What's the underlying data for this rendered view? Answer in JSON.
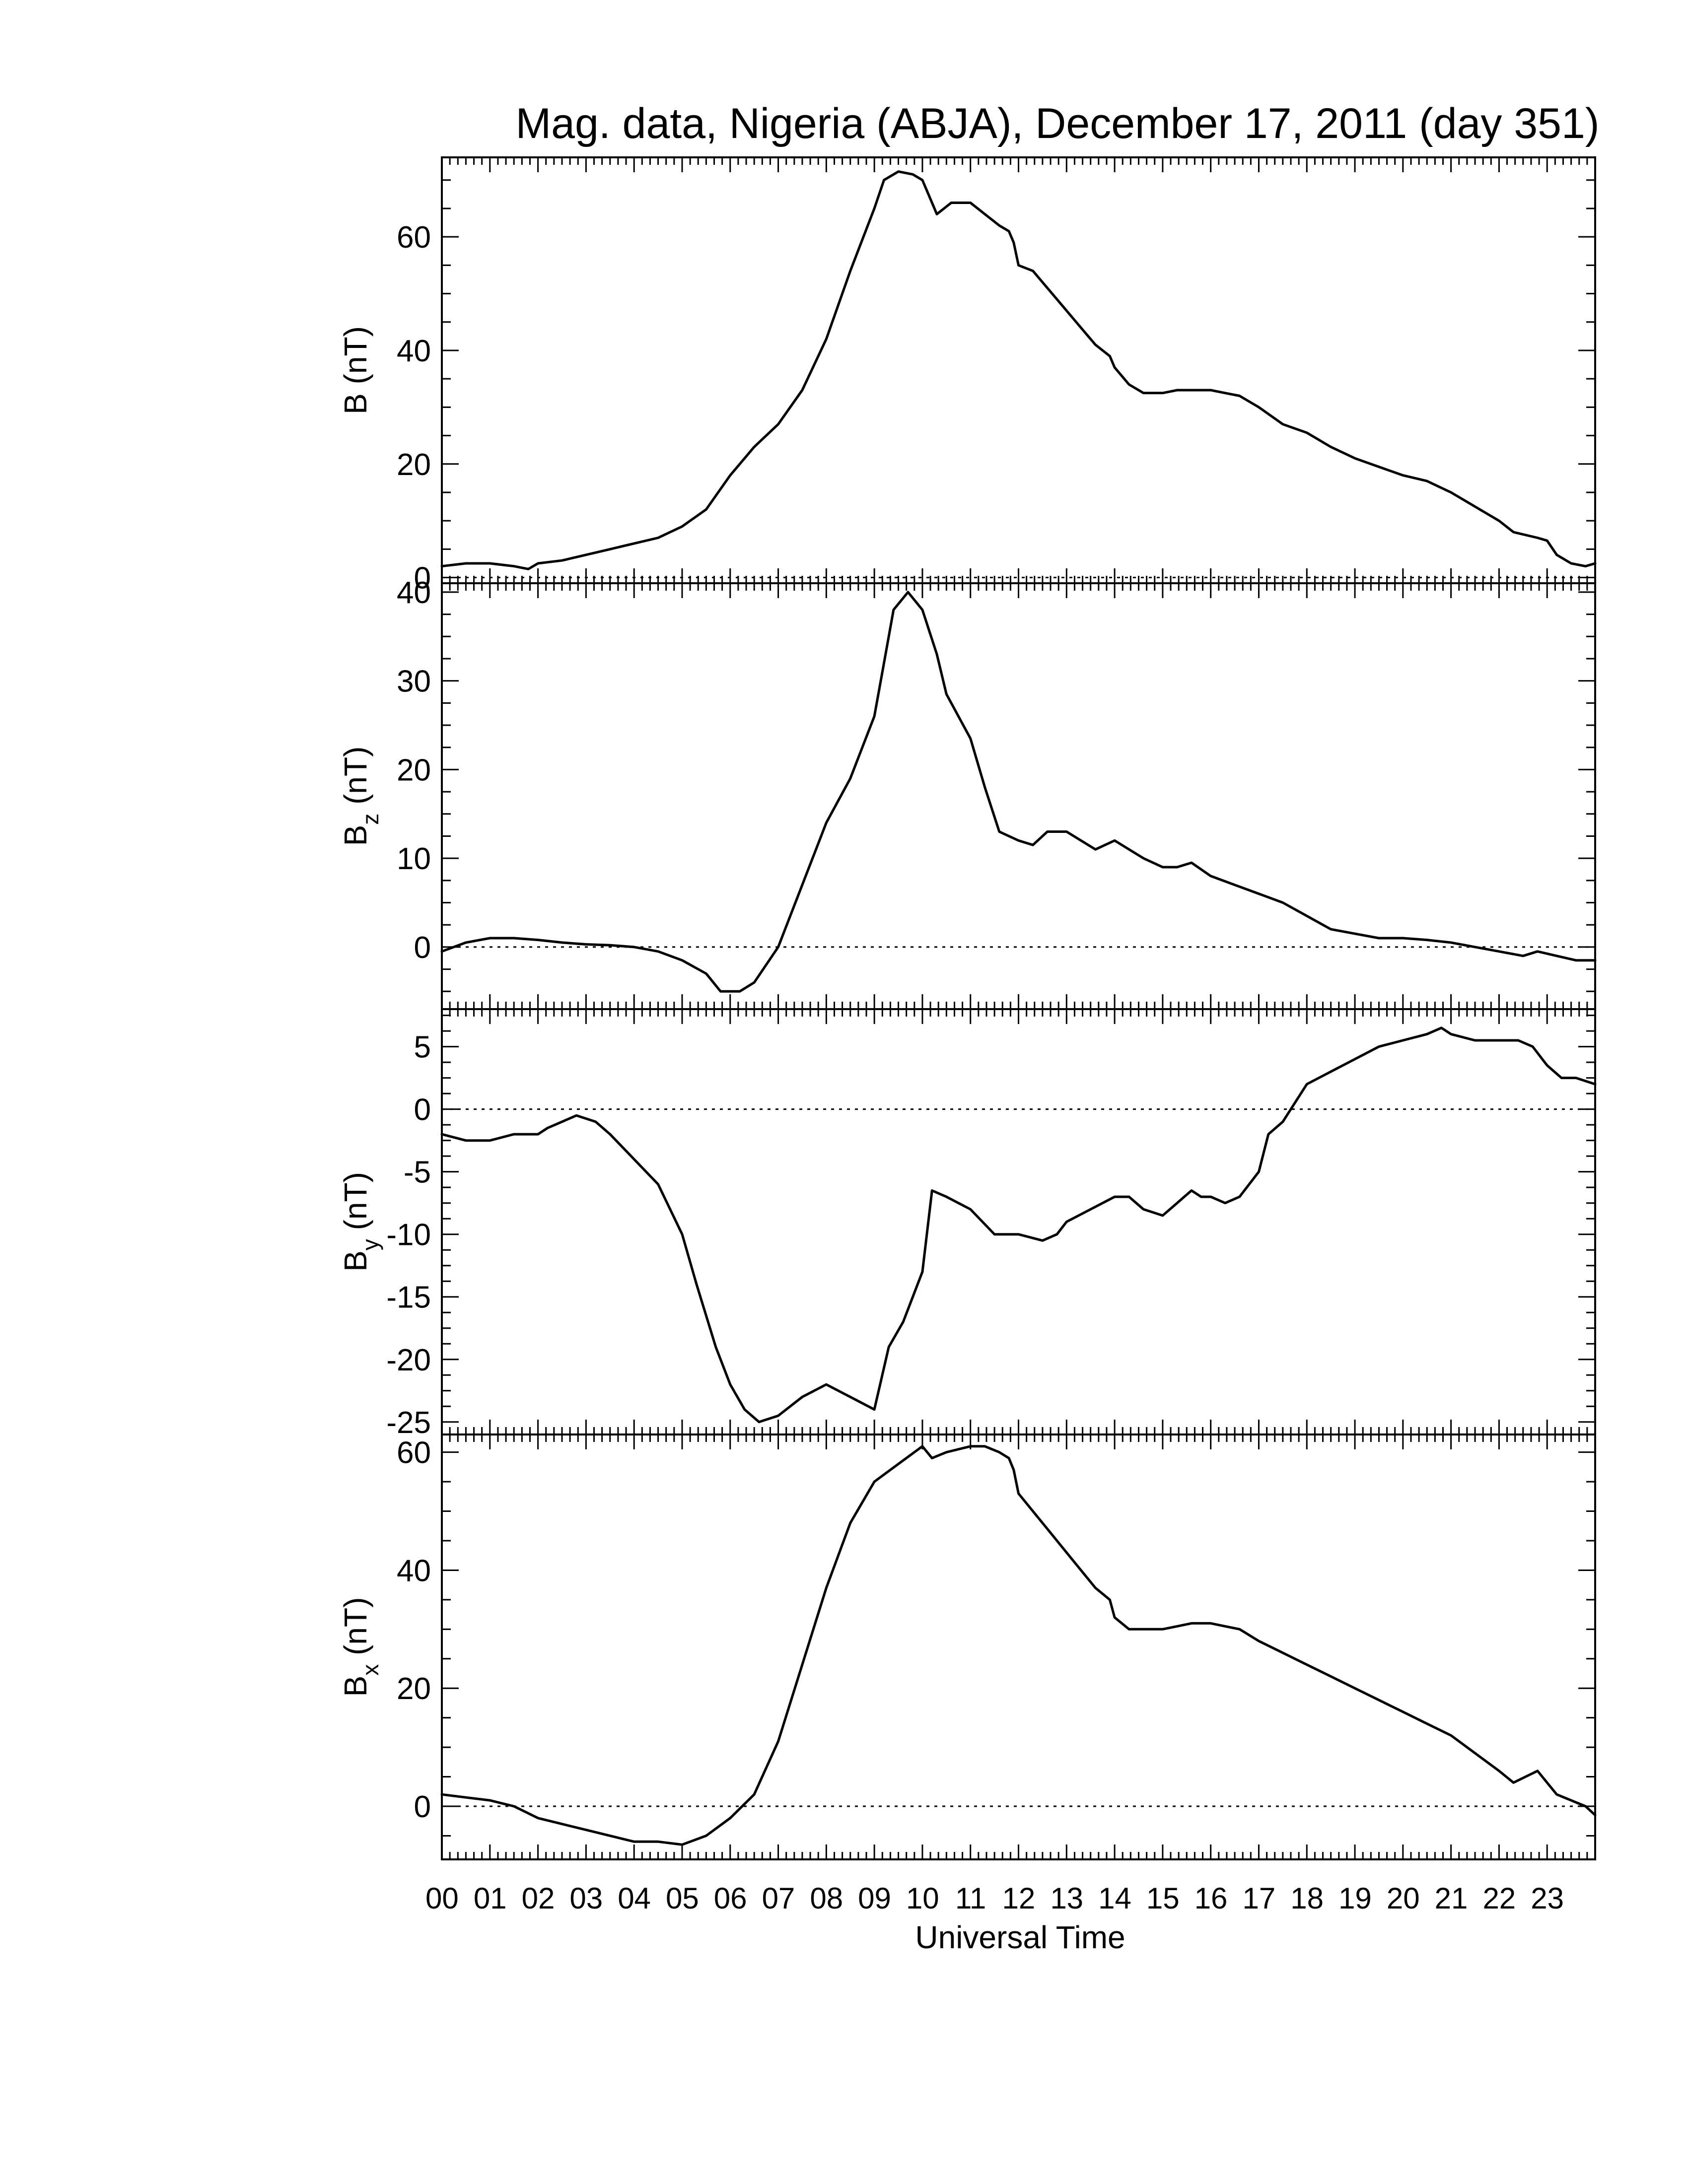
{
  "chart_data": {
    "type": "line",
    "title": "Mag. data, Nigeria (ABJA), December 17, 2011 (day 351)",
    "xlabel": "Universal Time",
    "x_ticks": [
      "00",
      "01",
      "02",
      "03",
      "04",
      "05",
      "06",
      "07",
      "08",
      "09",
      "10",
      "11",
      "12",
      "13",
      "14",
      "15",
      "16",
      "17",
      "18",
      "19",
      "20",
      "21",
      "22",
      "23"
    ],
    "xlim": [
      0,
      24
    ],
    "grid": false,
    "panels": [
      {
        "name": "B",
        "ylabel": "B (nT)",
        "ylabel_base": "B",
        "ylabel_sub": "",
        "ylabel_unit": " (nT)",
        "ylim": [
          -1,
          74
        ],
        "yticks": [
          0,
          20,
          40,
          60
        ],
        "zero_line": true,
        "x": [
          0,
          0.5,
          1,
          1.5,
          1.8,
          2.0,
          2.5,
          3,
          3.5,
          4,
          4.5,
          5,
          5.5,
          6,
          6.5,
          7,
          7.5,
          8,
          8.5,
          9,
          9.2,
          9.5,
          9.8,
          10,
          10.1,
          10.3,
          10.6,
          11,
          11.3,
          11.6,
          11.8,
          11.9,
          12.0,
          12.3,
          12.6,
          13,
          13.3,
          13.6,
          13.9,
          14.0,
          14.3,
          14.6,
          15,
          15.3,
          15.6,
          16,
          16.3,
          16.6,
          17,
          17.5,
          18,
          18.5,
          19,
          19.5,
          20,
          20.5,
          21,
          21.5,
          22,
          22.3,
          22.8,
          23.0,
          23.2,
          23.5,
          23.8,
          24
        ],
        "y": [
          2,
          2.5,
          2.5,
          2.0,
          1.5,
          2.5,
          3,
          4,
          5,
          6,
          7,
          9,
          12,
          18,
          23,
          27,
          33,
          42,
          54,
          65,
          70,
          71.5,
          71,
          70,
          68,
          64,
          66,
          66,
          64,
          62,
          61,
          59,
          55,
          54,
          51,
          47,
          44,
          41,
          39,
          37,
          34,
          32.5,
          32.5,
          33,
          33,
          33,
          32.5,
          32,
          30,
          27,
          25.5,
          23,
          21,
          19.5,
          18,
          17,
          15,
          12.5,
          10,
          8,
          7,
          6.5,
          4,
          2.5,
          2,
          2.5
        ]
      },
      {
        "name": "Bz",
        "ylabel": "Bz (nT)",
        "ylabel_base": "B",
        "ylabel_sub": "z",
        "ylabel_unit": " (nT)",
        "ylim": [
          -7,
          41
        ],
        "yticks": [
          0,
          10,
          20,
          30,
          40
        ],
        "zero_line": true,
        "x": [
          0,
          0.5,
          1,
          1.5,
          2,
          2.5,
          3,
          3.5,
          4,
          4.5,
          5,
          5.5,
          5.8,
          6.2,
          6.5,
          7,
          7.5,
          8,
          8.5,
          9,
          9.2,
          9.4,
          9.7,
          10,
          10.3,
          10.5,
          11,
          11.3,
          11.6,
          12.0,
          12.3,
          12.6,
          13,
          13.3,
          13.6,
          14.0,
          14.3,
          14.6,
          15,
          15.3,
          15.6,
          16,
          16.5,
          17,
          17.5,
          18,
          18.5,
          19,
          19.5,
          20,
          20.5,
          21,
          21.5,
          22,
          22.5,
          22.8,
          23.2,
          23.6,
          24
        ],
        "y": [
          -0.5,
          0.5,
          1,
          1,
          0.8,
          0.5,
          0.3,
          0.2,
          0,
          -0.5,
          -1.5,
          -3,
          -5,
          -5,
          -4,
          0,
          7,
          14,
          19,
          26,
          32,
          38,
          40,
          38,
          33,
          28.5,
          23.5,
          18,
          13,
          12,
          11.5,
          13,
          13,
          12,
          11,
          12,
          11,
          10,
          9,
          9,
          9.5,
          8,
          7,
          6,
          5,
          3.5,
          2,
          1.5,
          1,
          1,
          0.8,
          0.5,
          0,
          -0.5,
          -1,
          -0.5,
          -1,
          -1.5,
          -1.5
        ]
      },
      {
        "name": "By",
        "ylabel": "By (nT)",
        "ylabel_base": "B",
        "ylabel_sub": "y",
        "ylabel_unit": " (nT)",
        "ylim": [
          -26,
          8
        ],
        "yticks": [
          -25,
          -20,
          -15,
          -10,
          -5,
          0,
          5
        ],
        "zero_line": true,
        "x": [
          0,
          0.5,
          1,
          1.5,
          2,
          2.2,
          2.5,
          2.8,
          3.2,
          3.5,
          4,
          4.5,
          5,
          5.3,
          5.7,
          6,
          6.3,
          6.6,
          7,
          7.5,
          8,
          8.5,
          9,
          9.3,
          9.6,
          10.0,
          10.2,
          10.5,
          11,
          11.5,
          12,
          12.5,
          12.8,
          13,
          13.5,
          14,
          14.3,
          14.6,
          15,
          15.3,
          15.6,
          15.8,
          16,
          16.3,
          16.6,
          17,
          17.2,
          17.5,
          18,
          18.5,
          19,
          19.5,
          20,
          20.5,
          20.8,
          21,
          21.5,
          22,
          22.4,
          22.7,
          23,
          23.3,
          23.6,
          24
        ],
        "y": [
          -2,
          -2.5,
          -2.5,
          -2,
          -2,
          -1.5,
          -1,
          -0.5,
          -1,
          -2,
          -4,
          -6,
          -10,
          -14,
          -19,
          -22,
          -24,
          -25,
          -24.5,
          -23,
          -22,
          -23,
          -24,
          -19,
          -17,
          -13,
          -6.5,
          -7,
          -8,
          -10,
          -10,
          -10.5,
          -10,
          -9,
          -8,
          -7,
          -7,
          -8,
          -8.5,
          -7.5,
          -6.5,
          -7,
          -7,
          -7.5,
          -7,
          -5,
          -2,
          -1,
          2,
          3,
          4,
          5,
          5.5,
          6,
          6.5,
          6,
          5.5,
          5.5,
          5.5,
          5,
          3.5,
          2.5,
          2.5,
          2
        ]
      },
      {
        "name": "Bx",
        "ylabel": "Bx (nT)",
        "ylabel_base": "B",
        "ylabel_sub": "x",
        "ylabel_unit": " (nT)",
        "ylim": [
          -9,
          63
        ],
        "yticks": [
          0,
          20,
          40,
          60
        ],
        "zero_line": true,
        "x": [
          0,
          0.5,
          1,
          1.5,
          2,
          2.5,
          3,
          3.5,
          4,
          4.5,
          5,
          5.5,
          6,
          6.5,
          7,
          7.5,
          8,
          8.5,
          9,
          9.5,
          10,
          10.2,
          10.5,
          11,
          11.3,
          11.6,
          11.8,
          11.9,
          12.0,
          12.3,
          12.6,
          13,
          13.3,
          13.6,
          13.9,
          14.0,
          14.3,
          14.6,
          15,
          15.3,
          15.6,
          16,
          16.3,
          16.6,
          17,
          17.5,
          18,
          18.5,
          19,
          19.5,
          20,
          20.5,
          21,
          21.5,
          22,
          22.3,
          22.8,
          23.0,
          23.2,
          23.5,
          23.8,
          24
        ],
        "y": [
          2,
          1.5,
          1,
          0,
          -2,
          -3,
          -4,
          -5,
          -6,
          -6,
          -6.5,
          -5,
          -2,
          2,
          11,
          24,
          37,
          48,
          55,
          58,
          61,
          59,
          60,
          61,
          61,
          60,
          59,
          57,
          53,
          50,
          47,
          43,
          40,
          37,
          35,
          32,
          30,
          30,
          30,
          30.5,
          31,
          31,
          30.5,
          30,
          28,
          26,
          24,
          22,
          20,
          18,
          16,
          14,
          12,
          9,
          6,
          4,
          6,
          4,
          2,
          1,
          0,
          -1.5
        ]
      }
    ]
  }
}
